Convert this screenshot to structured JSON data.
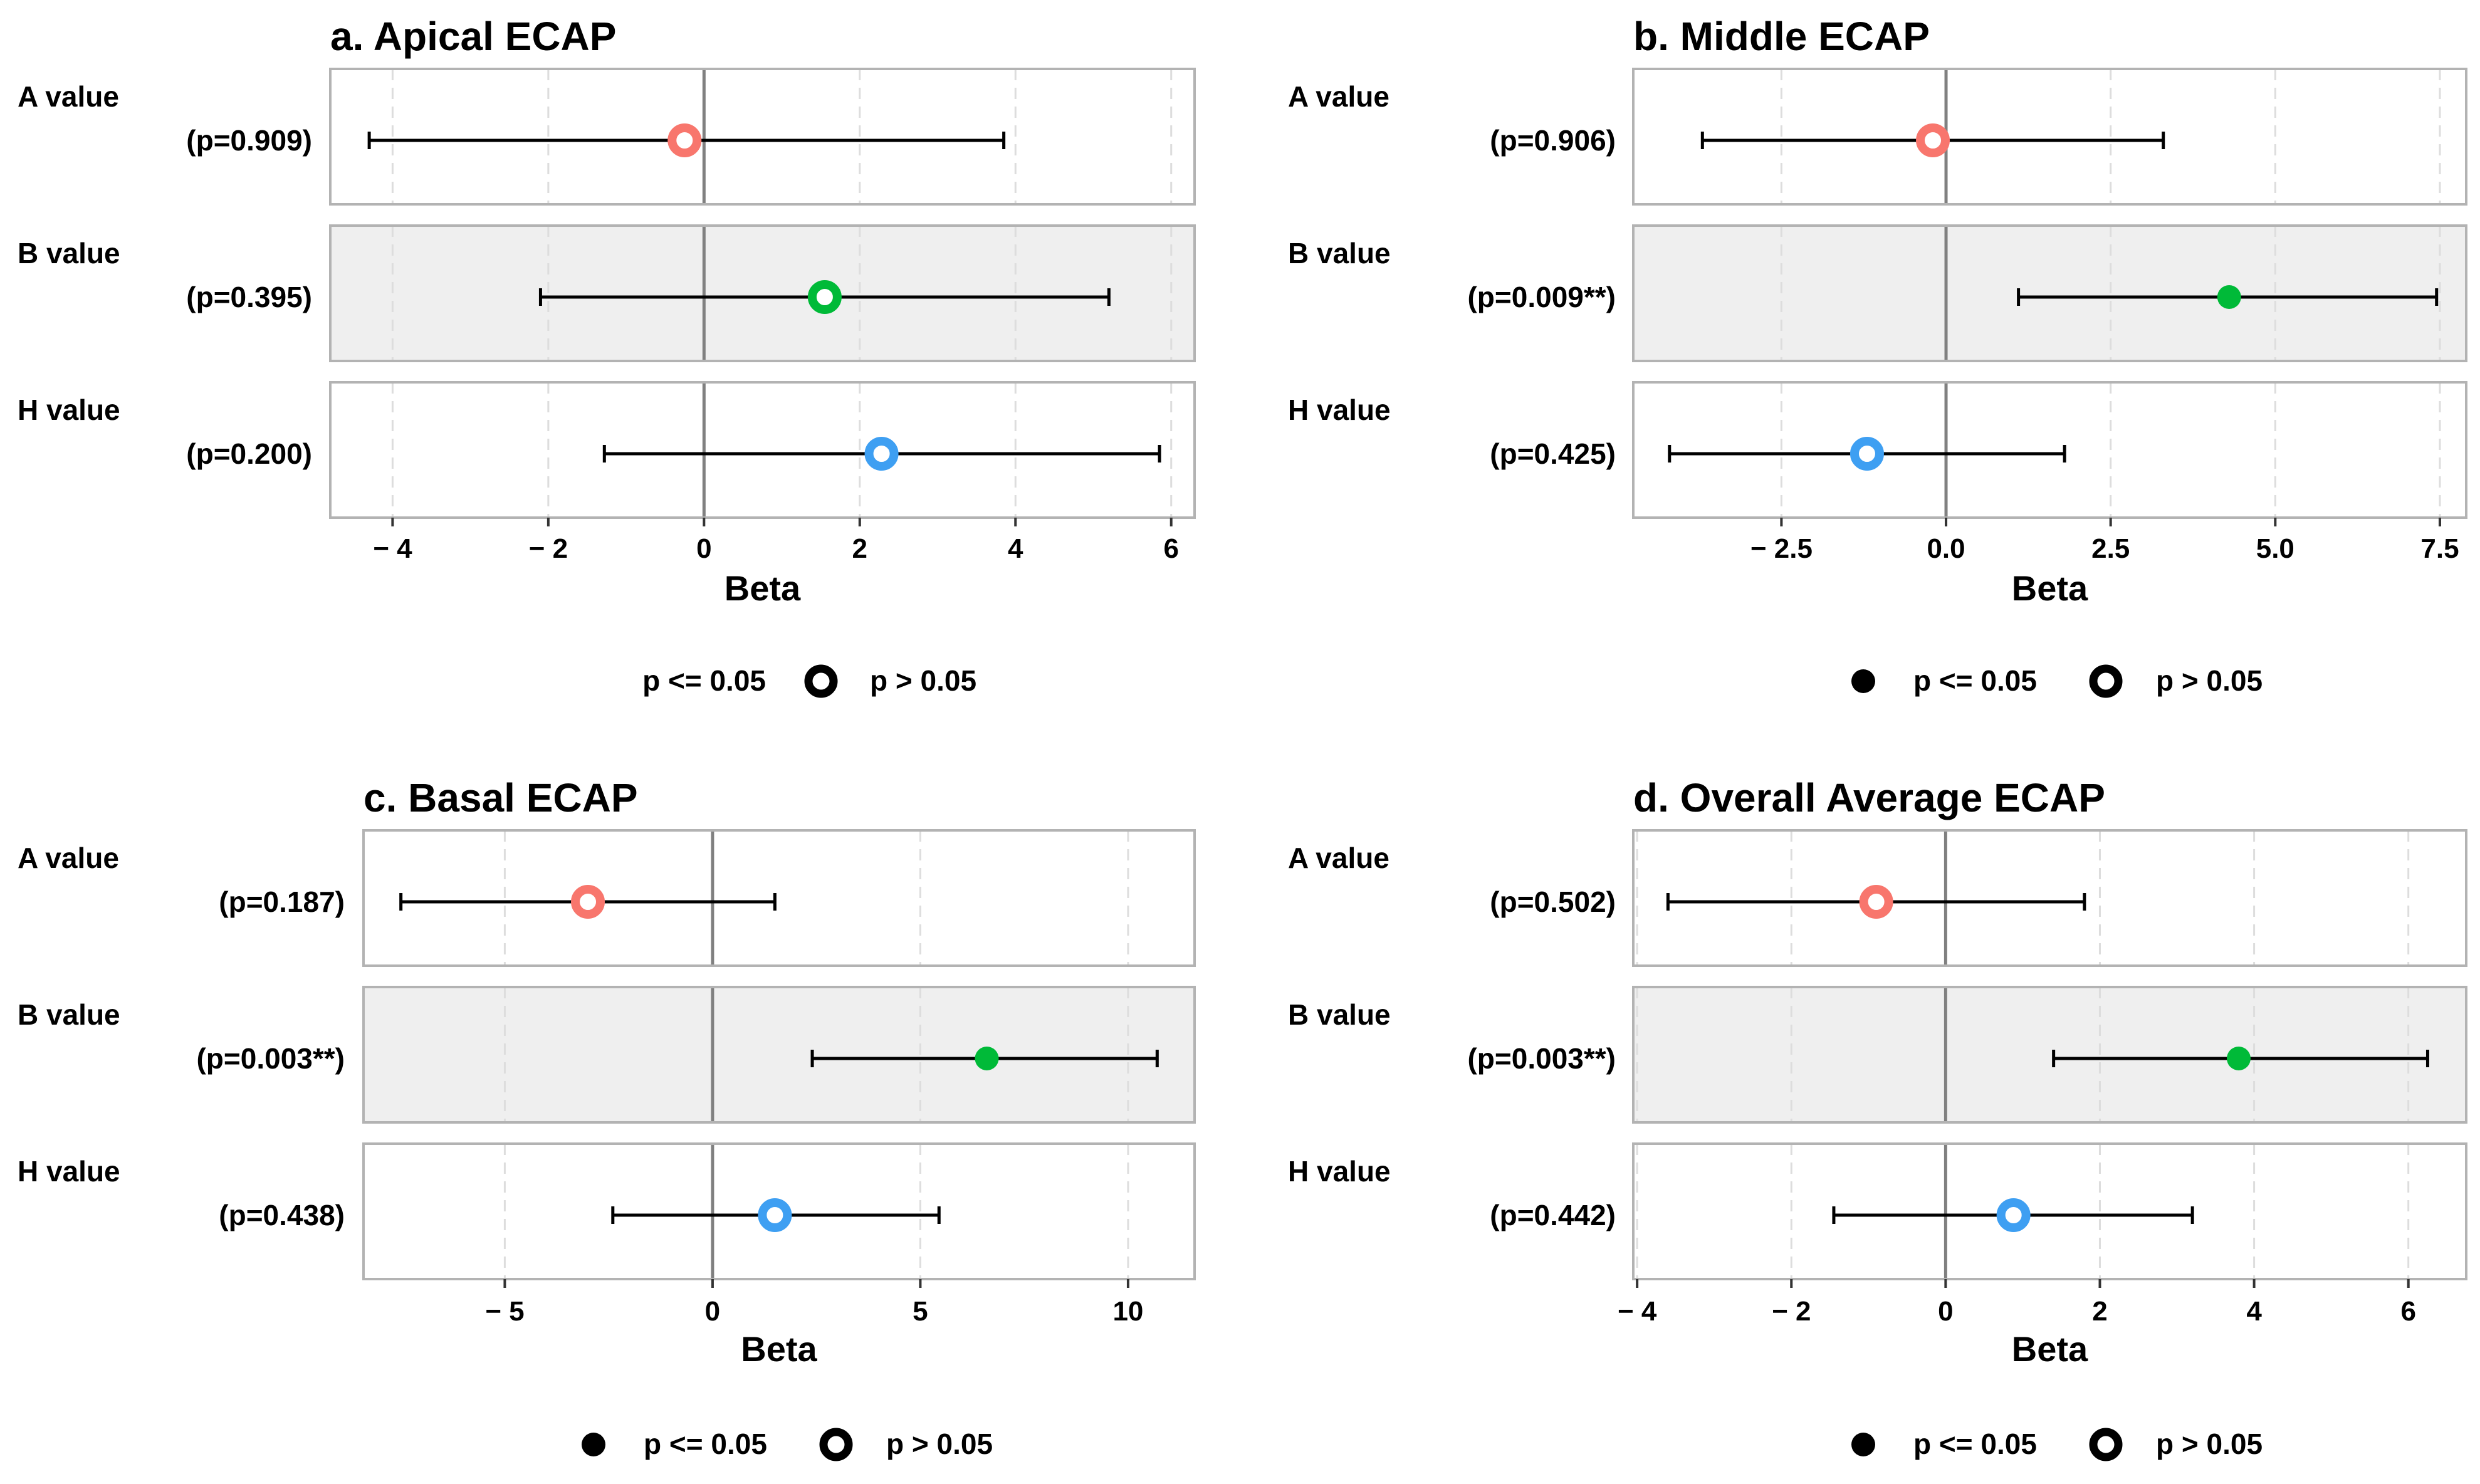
{
  "colors": {
    "A": "#F8766D",
    "B": "#00BA38",
    "H": "#3E9FF2",
    "panel_white": "#FFFFFF",
    "panel_grey": "#EFEFEF",
    "border": "#B3B3B3",
    "grid": "#DDDDDD",
    "zero_line": "#808080",
    "ink": "#000000"
  },
  "chart_data": [
    {
      "type": "forest",
      "title": "a. Apical ECAP",
      "xlabel": "Beta",
      "xlim": [
        -4.8,
        6.3
      ],
      "ticks": [
        -4,
        -2,
        0,
        2,
        4,
        6
      ],
      "tick_labels": [
        "− 4",
        "− 2",
        "0",
        "2",
        "4",
        "6"
      ],
      "rows": [
        {
          "label": "A value",
          "p_label": "(p=0.909)",
          "estimate": -0.25,
          "lower": -4.3,
          "upper": 3.85,
          "significant": false,
          "color_key": "A"
        },
        {
          "label": "B value",
          "p_label": "(p=0.395)",
          "estimate": 1.55,
          "lower": -2.1,
          "upper": 5.2,
          "significant": false,
          "color_key": "B"
        },
        {
          "label": "H value",
          "p_label": "(p=0.200)",
          "estimate": 2.28,
          "lower": -1.28,
          "upper": 5.85,
          "significant": false,
          "color_key": "H"
        }
      ],
      "legend": {
        "items": [
          {
            "symbol": "none",
            "label": "p <= 0.05"
          },
          {
            "symbol": "open",
            "label": "p > 0.05"
          }
        ],
        "position": "bottom"
      }
    },
    {
      "type": "forest",
      "title": "b. Middle ECAP",
      "xlabel": "Beta",
      "xlim": [
        -4.75,
        7.9
      ],
      "ticks": [
        -2.5,
        0,
        2.5,
        5,
        7.5
      ],
      "tick_labels": [
        "− 2.5",
        "0.0",
        "2.5",
        "5.0",
        "7.5"
      ],
      "rows": [
        {
          "label": "A value",
          "p_label": "(p=0.906)",
          "estimate": -0.2,
          "lower": -3.7,
          "upper": 3.3,
          "significant": false,
          "color_key": "A"
        },
        {
          "label": "B value",
          "p_label": "(p=0.009**)",
          "estimate": 4.3,
          "lower": 1.1,
          "upper": 7.45,
          "significant": true,
          "color_key": "B"
        },
        {
          "label": "H value",
          "p_label": "(p=0.425)",
          "estimate": -1.2,
          "lower": -4.2,
          "upper": 1.8,
          "significant": false,
          "color_key": "H"
        }
      ],
      "legend": {
        "items": [
          {
            "symbol": "filled",
            "label": "p <= 0.05"
          },
          {
            "symbol": "open",
            "label": "p > 0.05"
          }
        ],
        "position": "bottom"
      }
    },
    {
      "type": "forest",
      "title": "c. Basal ECAP",
      "xlabel": "Beta",
      "xlim": [
        -8.4,
        11.6
      ],
      "ticks": [
        -5,
        0,
        5,
        10
      ],
      "tick_labels": [
        "− 5",
        "0",
        "5",
        "10"
      ],
      "rows": [
        {
          "label": "A value",
          "p_label": "(p=0.187)",
          "estimate": -3.0,
          "lower": -7.5,
          "upper": 1.5,
          "significant": false,
          "color_key": "A"
        },
        {
          "label": "B value",
          "p_label": "(p=0.003**)",
          "estimate": 6.6,
          "lower": 2.4,
          "upper": 10.7,
          "significant": true,
          "color_key": "B"
        },
        {
          "label": "H value",
          "p_label": "(p=0.438)",
          "estimate": 1.5,
          "lower": -2.4,
          "upper": 5.45,
          "significant": false,
          "color_key": "H"
        }
      ],
      "legend": {
        "items": [
          {
            "symbol": "filled",
            "label": "p <= 0.05"
          },
          {
            "symbol": "open",
            "label": "p > 0.05"
          }
        ],
        "position": "bottom"
      }
    },
    {
      "type": "forest",
      "title": "d. Overall Average ECAP",
      "xlabel": "Beta",
      "xlim": [
        -4.05,
        6.75
      ],
      "ticks": [
        -4,
        -2,
        0,
        2,
        4,
        6
      ],
      "tick_labels": [
        "− 4",
        "− 2",
        "0",
        "2",
        "4",
        "6"
      ],
      "rows": [
        {
          "label": "A value",
          "p_label": "(p=0.502)",
          "estimate": -0.9,
          "lower": -3.6,
          "upper": 1.8,
          "significant": false,
          "color_key": "A"
        },
        {
          "label": "B value",
          "p_label": "(p=0.003**)",
          "estimate": 3.8,
          "lower": 1.4,
          "upper": 6.25,
          "significant": true,
          "color_key": "B"
        },
        {
          "label": "H value",
          "p_label": "(p=0.442)",
          "estimate": 0.88,
          "lower": -1.45,
          "upper": 3.2,
          "significant": false,
          "color_key": "H"
        }
      ],
      "legend": {
        "items": [
          {
            "symbol": "filled",
            "label": "p <= 0.05"
          },
          {
            "symbol": "open",
            "label": "p > 0.05"
          }
        ],
        "position": "bottom"
      }
    }
  ]
}
